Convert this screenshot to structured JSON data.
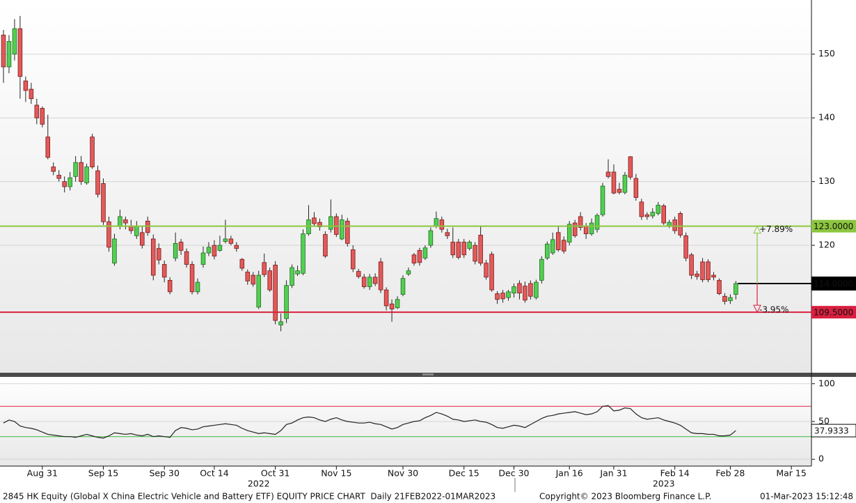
{
  "chart_data": [
    {
      "type": "candlestick",
      "categories": [
        null,
        null,
        null,
        null,
        null,
        null,
        null,
        "Aug 31",
        null,
        null,
        null,
        null,
        null,
        null,
        null,
        null,
        null,
        null,
        "Sep 15",
        null,
        null,
        null,
        null,
        null,
        null,
        null,
        null,
        null,
        null,
        "Sep 30",
        null,
        null,
        null,
        null,
        null,
        null,
        null,
        null,
        "Oct 14",
        null,
        null,
        null,
        null,
        null,
        null,
        null,
        null,
        null,
        null,
        "Oct 31",
        null,
        null,
        null,
        null,
        null,
        null,
        null,
        null,
        null,
        null,
        "Nov 15",
        null,
        null,
        null,
        null,
        null,
        null,
        null,
        null,
        null,
        null,
        null,
        "Nov 30",
        null,
        null,
        null,
        null,
        null,
        null,
        null,
        null,
        null,
        null,
        "Dec 15",
        null,
        null,
        null,
        null,
        null,
        null,
        null,
        null,
        "Dec 30",
        null,
        null,
        null,
        null,
        null,
        null,
        null,
        null,
        null,
        "Jan 16",
        null,
        null,
        null,
        null,
        null,
        null,
        null,
        "Jan 31",
        null,
        null,
        null,
        null,
        null,
        null,
        null,
        null,
        null,
        null,
        "Feb 14",
        null,
        null,
        null,
        null,
        null,
        null,
        null,
        null,
        null,
        "Feb 28",
        null,
        null,
        null,
        null,
        null,
        null,
        null,
        null,
        null,
        null,
        "Mar 15",
        null,
        null,
        null
      ],
      "years": [
        null,
        null,
        null,
        null,
        null,
        null,
        null,
        null,
        null,
        null,
        null,
        null,
        null,
        null,
        null,
        null,
        null,
        null,
        null,
        null,
        null,
        null,
        null,
        null,
        null,
        null,
        null,
        null,
        null,
        null,
        null,
        null,
        null,
        null,
        null,
        null,
        null,
        null,
        null,
        null,
        null,
        null,
        null,
        null,
        null,
        null,
        "2022",
        null,
        null,
        null,
        null,
        null,
        null,
        null,
        null,
        null,
        null,
        null,
        null,
        null,
        null,
        null,
        null,
        null,
        null,
        null,
        null,
        null,
        null,
        null,
        null,
        null,
        null,
        null,
        null,
        null,
        null,
        null,
        null,
        null,
        null,
        null,
        null,
        null,
        null,
        null,
        null,
        null,
        null,
        null,
        null,
        null,
        null,
        null,
        null,
        null,
        null,
        null,
        null,
        null,
        null,
        null,
        null,
        null,
        null,
        null,
        null,
        null,
        null,
        null,
        null,
        null,
        null,
        null,
        null,
        null,
        null,
        null,
        null,
        "2023",
        null,
        null,
        null,
        null,
        null,
        null,
        null,
        null,
        null,
        null,
        null,
        null,
        null,
        null,
        null,
        null,
        null,
        null,
        null,
        null,
        null,
        null,
        null,
        null,
        null,
        null
      ],
      "open": [
        153,
        148,
        150,
        154,
        145.8,
        144.5,
        142,
        141.5,
        137,
        132.3,
        131,
        130,
        129.2,
        130.8,
        133,
        129.8,
        137,
        131.7,
        129.7,
        123.7,
        117.2,
        123,
        124,
        123,
        121.5,
        122,
        123.8,
        121,
        119.5,
        117,
        114.5,
        118,
        120.5,
        119,
        117,
        112.7,
        117,
        118.8,
        120,
        119.2,
        120.6,
        121,
        120,
        117.8,
        115.8,
        115.3,
        110.3,
        117.3,
        116,
        116.9,
        107.5,
        108.5,
        113.7,
        115.5,
        115.6,
        121.8,
        124.3,
        123.6,
        121.7,
        122.5,
        124.5,
        121,
        123.8,
        119.3,
        115.9,
        115,
        113.5,
        115,
        117.4,
        113,
        110.8,
        110.2,
        112.3,
        115.5,
        118.5,
        119.2,
        118,
        120,
        123,
        124,
        122,
        120.5,
        120.5,
        120.5,
        119.5,
        120,
        121.6,
        117.2,
        118.6,
        112.4,
        112.5,
        111.8,
        112.5,
        114,
        113.6,
        114,
        111.8,
        114.5,
        118,
        118.8,
        122,
        120.8,
        120.5,
        123.5,
        124.5,
        123,
        121.8,
        122.5,
        124.8,
        131.5,
        131.5,
        128.8,
        128.3,
        133.9,
        130.5,
        126.8,
        124.8,
        124.6,
        125,
        126.2,
        123,
        124,
        125,
        121.5,
        118.5,
        115.5,
        117.4,
        117.4,
        115.3,
        114.5,
        112,
        111.3,
        112.3,
        null,
        null,
        null,
        null,
        null,
        null,
        null,
        null,
        null,
        null,
        null,
        null,
        null
      ],
      "high": [
        153.8,
        153,
        155.5,
        156,
        146.5,
        145.5,
        143,
        141.8,
        140.5,
        133,
        131.8,
        130.8,
        131.5,
        134,
        134,
        132.8,
        137.5,
        132.5,
        130.5,
        124.5,
        121.8,
        125.6,
        124.5,
        124,
        123.8,
        123,
        124.5,
        121.7,
        120.3,
        117.6,
        115,
        122,
        121,
        119.5,
        117.5,
        114.8,
        119.8,
        120.5,
        120.8,
        121.5,
        124,
        121.5,
        120.5,
        118,
        116.2,
        115.8,
        116,
        118.7,
        116.5,
        117.5,
        109.3,
        114.5,
        117,
        116.8,
        122.5,
        126.3,
        125.2,
        124.2,
        122.2,
        127.2,
        125,
        124.8,
        124.3,
        120,
        116.3,
        115.5,
        115.5,
        115.6,
        118,
        113.4,
        111.5,
        112,
        115.3,
        116.5,
        118.8,
        119.6,
        120,
        122.8,
        125.3,
        124.5,
        122.6,
        122.8,
        121,
        121,
        120.8,
        120.5,
        123,
        117.7,
        119,
        112.8,
        113,
        113,
        114,
        114.5,
        114.3,
        114.5,
        114.6,
        118.3,
        120.6,
        122,
        123,
        121.4,
        123.8,
        124,
        125.2,
        123.5,
        124.2,
        125,
        129.8,
        133.5,
        132.7,
        129.8,
        131.5,
        134,
        131.2,
        127.3,
        125.2,
        125.8,
        126.8,
        126.5,
        124,
        124.5,
        125.3,
        122,
        118.8,
        116,
        118,
        117.8,
        115.8,
        114.8,
        112.5,
        112.3,
        114.4,
        null,
        null,
        null,
        null,
        null,
        null,
        null,
        null,
        null,
        null,
        null,
        null,
        null
      ],
      "low": [
        145.5,
        147,
        149,
        143,
        142.5,
        142.2,
        139,
        138.5,
        133.5,
        131,
        130,
        128.3,
        128.6,
        130,
        129.5,
        129.5,
        132,
        127.5,
        123.2,
        119,
        116.8,
        122.5,
        122.5,
        121.8,
        121,
        119.5,
        121.5,
        114.5,
        117,
        114.2,
        112.3,
        117.5,
        118.5,
        116.5,
        112.3,
        112.3,
        116.5,
        118.3,
        117.8,
        119,
        120.3,
        120,
        119,
        116,
        113.8,
        113.5,
        110,
        115,
        112.7,
        107.6,
        106.5,
        107.8,
        113.3,
        115.2,
        115.3,
        121.5,
        123,
        122.3,
        118,
        122,
        121.3,
        120.8,
        119.8,
        115.8,
        114.8,
        113.2,
        113,
        113.6,
        112.5,
        109.8,
        108,
        110,
        112,
        115.2,
        116.8,
        116.8,
        117.7,
        119.6,
        122.7,
        122,
        121,
        118,
        117.8,
        118,
        119.2,
        117,
        116.8,
        114.6,
        112.7,
        110.8,
        111,
        111.3,
        111.8,
        111.5,
        111,
        111.5,
        111.5,
        114,
        117.7,
        118.5,
        119,
        118.7,
        120,
        121.2,
        122.3,
        121,
        121.5,
        122,
        124.5,
        130.5,
        128,
        128,
        128,
        130.3,
        127,
        124,
        124,
        124.2,
        124.7,
        123.2,
        122.7,
        121.8,
        121.2,
        117.5,
        114.7,
        114.6,
        114.2,
        114.2,
        114.5,
        112.2,
        110.7,
        110.8,
        111.5,
        null,
        null,
        null,
        null,
        null,
        null,
        null,
        null,
        null,
        null,
        null,
        null,
        null
      ],
      "close": [
        148,
        152,
        154,
        146.5,
        144.3,
        143,
        140,
        139,
        133.8,
        131.6,
        130.5,
        129.2,
        130.6,
        133,
        130,
        132.3,
        132.3,
        128,
        123.7,
        119.7,
        121,
        124.5,
        123.5,
        122.3,
        123,
        120,
        122,
        115.3,
        117.7,
        115,
        112.7,
        120.3,
        119.2,
        117,
        112.7,
        114.2,
        118.8,
        119.7,
        118.3,
        120,
        121,
        120.3,
        119.5,
        116.4,
        114.4,
        113.9,
        115.3,
        115.4,
        113,
        108.2,
        108,
        113.7,
        116.5,
        116,
        121.8,
        124,
        123.4,
        122.9,
        118.3,
        124.5,
        121.7,
        124,
        120.3,
        116.3,
        115.1,
        113.5,
        115,
        114,
        113,
        110.5,
        110,
        111.5,
        114.8,
        116,
        117.2,
        117.3,
        119.6,
        122.3,
        124.2,
        122.5,
        121.5,
        118.5,
        118.1,
        118.5,
        120.5,
        117.5,
        117.2,
        115,
        113,
        111.5,
        111.6,
        112.7,
        113.5,
        112.5,
        111.4,
        112,
        114.2,
        117.8,
        120.2,
        120.9,
        119.3,
        119.1,
        123.3,
        121.5,
        122.8,
        121.8,
        123.5,
        124.7,
        129.3,
        130.8,
        128.2,
        128.3,
        131,
        130.7,
        127.5,
        124.5,
        124.5,
        125.2,
        126.3,
        123.5,
        123.6,
        122.3,
        121.6,
        118,
        115.3,
        115.1,
        114.6,
        114.6,
        115,
        112.4,
        111.2,
        111.8,
        114,
        null,
        null,
        null,
        null,
        null,
        null,
        null,
        null,
        null,
        null,
        null,
        null,
        null
      ],
      "up_color": "#52cf52",
      "down_color": "#e25a5a",
      "ylim": [
        100,
        158.5
      ],
      "yticks": [
        120,
        130,
        140,
        150
      ],
      "grid": true,
      "levels": [
        {
          "value": 123,
          "label": "123.0000",
          "color": "#8cc63f"
        },
        {
          "value": 109.5,
          "label": "109.5000",
          "color": "#d9203f"
        }
      ],
      "last_price": {
        "value": 114,
        "label": "114.0000"
      },
      "change_labels": [
        {
          "value": 7.89,
          "label": "+7.89%",
          "color": "#8cc63f"
        },
        {
          "value": -3.95,
          "label": "-3.95%",
          "color": "#d9203f"
        }
      ]
    },
    {
      "type": "line",
      "series": [
        {
          "color": "#222222",
          "values": [
            48,
            52,
            50,
            44,
            42,
            41,
            39,
            36,
            33,
            32,
            31,
            30,
            30,
            29,
            31,
            33,
            31,
            29,
            28,
            31,
            35,
            34,
            33,
            34,
            32,
            31,
            33,
            30,
            31,
            30,
            29,
            38,
            42,
            41,
            39,
            40,
            43,
            44,
            45,
            46,
            47,
            46,
            45,
            41,
            38,
            36,
            34,
            35,
            34,
            33,
            38,
            46,
            48,
            52,
            55,
            56,
            55,
            52,
            50,
            53,
            55,
            52,
            50,
            49,
            48,
            48,
            49,
            47,
            46,
            43,
            40,
            42,
            46,
            48,
            50,
            51,
            55,
            58,
            62,
            60,
            57,
            53,
            52,
            50,
            51,
            52,
            50,
            49,
            46,
            42,
            41,
            43,
            45,
            44,
            42,
            46,
            50,
            54,
            57,
            58,
            60,
            61,
            62,
            63,
            61,
            59,
            60,
            63,
            70,
            71,
            64,
            65,
            68,
            67,
            60,
            55,
            53,
            54,
            55,
            52,
            50,
            48,
            45,
            40,
            35,
            34,
            34,
            33,
            33,
            31,
            31,
            32,
            37.9333,
            null,
            null,
            null,
            null,
            null,
            null,
            null,
            null,
            null,
            null,
            null,
            null,
            null
          ]
        }
      ],
      "ylim": [
        -9,
        109
      ],
      "yticks": [
        0,
        50,
        100
      ],
      "grid": true,
      "levels": [
        {
          "value": 70,
          "color": "#d9203f"
        },
        {
          "value": 30,
          "color": "#3cb83c"
        }
      ]
    }
  ],
  "footer": {
    "left": "2845 HK Equity (Global X China Electric Vehicle and Battery ETF) EQUITY PRICE CHART  Daily 21FEB2022-01MAR2023",
    "center": "Copyright© 2023 Bloomberg Finance L.P.",
    "right": "01-Mar-2023 15:12:48"
  }
}
